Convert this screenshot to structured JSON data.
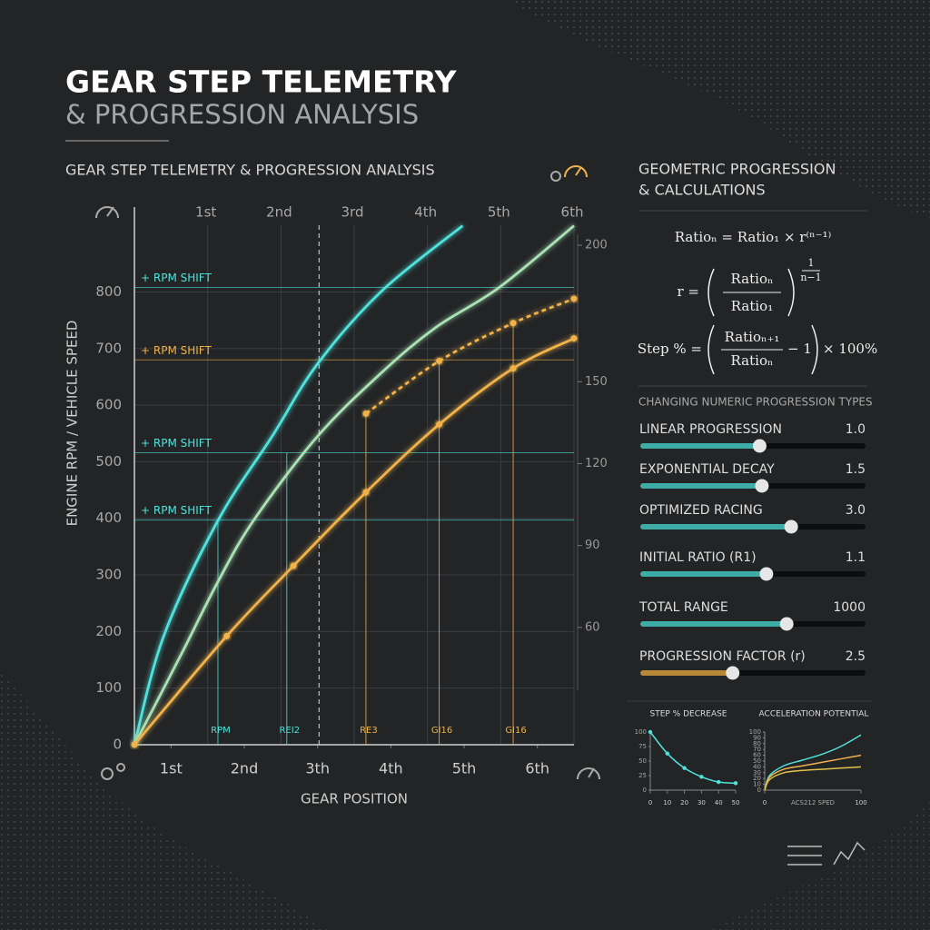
{
  "header": {
    "title": "GEAR STEP TELEMETRY",
    "subtitle": "& PROGRESSION ANALYSIS"
  },
  "chart_data": [
    {
      "type": "line",
      "title": "GEAR STEP TELEMETRY & PROGRESSION ANALYSIS",
      "xlabel": "GEAR POSITION",
      "ylabel": "ENGINE RPM / VEHICLE SPEED",
      "xlim": [
        0.5,
        6.5
      ],
      "xticks": [
        {
          "value": 1,
          "label": "1st"
        },
        {
          "value": 2,
          "label": "2nd"
        },
        {
          "value": 3,
          "label": "3th"
        },
        {
          "value": 4,
          "label": "4th"
        },
        {
          "value": 5,
          "label": "5th"
        },
        {
          "value": 6,
          "label": "6th"
        }
      ],
      "x2ticks": [
        {
          "value": 1.5,
          "label": "1st"
        },
        {
          "value": 2.5,
          "label": "2nd"
        },
        {
          "value": 3.5,
          "label": "3rd"
        },
        {
          "value": 4.5,
          "label": "4th"
        },
        {
          "value": 5.5,
          "label": "5th"
        },
        {
          "value": 6.5,
          "label": "6th"
        }
      ],
      "ylim": [
        0,
        950
      ],
      "yticks": [
        0,
        100,
        200,
        300,
        400,
        500,
        600,
        700,
        800
      ],
      "y2lim": [
        17,
        214
      ],
      "y2ticks": [
        60,
        90,
        120,
        150,
        200
      ],
      "grid": true,
      "series": [
        {
          "color": "#4fe3dc",
          "style": "solid",
          "x": [
            0.5,
            0.9,
            1.64,
            2.38,
            3.0,
            3.87,
            4.98
          ],
          "values": [
            0,
            192,
            396,
            545,
            673,
            801,
            917
          ]
        },
        {
          "color": "#a9e2b4",
          "style": "solid",
          "x": [
            0.5,
            1.14,
            1.64,
            2.13,
            3.0,
            3.87,
            4.61,
            5.48,
            6.5
          ],
          "values": [
            0,
            160,
            288,
            397,
            545,
            657,
            737,
            808,
            917
          ]
        },
        {
          "color": "#f0b24a",
          "style": "solid",
          "markers": true,
          "x": [
            0.5,
            1.76,
            2.67,
            3.66,
            4.66,
            5.67,
            6.5
          ],
          "values": [
            0,
            192,
            316,
            446,
            566,
            665,
            718
          ]
        },
        {
          "color": "#f0b24a",
          "style": "dashed",
          "markers": true,
          "x": [
            3.66,
            4.66,
            5.67,
            6.5
          ],
          "values": [
            585,
            678,
            745,
            788
          ]
        }
      ],
      "reference_lines": [
        {
          "label": "+ RPM SHIFT",
          "value": 808,
          "color": "#4fe3dc"
        },
        {
          "label": "+ RPM SHIFT",
          "value": 680,
          "color": "#f0b24a"
        },
        {
          "label": "+ RPM SHIFT",
          "value": 516,
          "color": "#4fe3dc"
        },
        {
          "label": "+ RPM SHIFT",
          "value": 397,
          "color": "#4fe3dc"
        }
      ],
      "drop_lines": [
        {
          "label": "RPM",
          "x": 1.64,
          "y": 396,
          "color": "#4fe3dc"
        },
        {
          "label": "REI2",
          "x": 2.58,
          "y": 516,
          "color": "#4fe3dc"
        },
        {
          "label": "RE3",
          "x": 3.66,
          "y": 585,
          "color": "#f0b24a"
        },
        {
          "label": "GI16",
          "x": 4.66,
          "y": 678,
          "color": "#f0b24a"
        },
        {
          "label": "GI16",
          "x": 5.67,
          "y": 745,
          "color": "#f0b24a"
        }
      ],
      "cursor_x": 3.02
    },
    {
      "type": "line",
      "title": "STEP % DECREASE",
      "xlim": [
        0,
        50
      ],
      "xticks": [
        0,
        10,
        20,
        30,
        40,
        50
      ],
      "ylim": [
        0,
        100
      ],
      "yticks": [
        0,
        25,
        50,
        75,
        100
      ],
      "series": [
        {
          "color": "#4fe3dc",
          "markers": true,
          "x": [
            0,
            10,
            20,
            30,
            40,
            50
          ],
          "values": [
            100,
            63,
            38,
            23,
            14,
            12
          ]
        }
      ]
    },
    {
      "type": "line",
      "title": "ACCELERATION POTENTIAL",
      "xlabel": "ACS212 SPED",
      "xlim": [
        0,
        100
      ],
      "xticks": [
        0,
        100
      ],
      "ylim": [
        0,
        100
      ],
      "yticks": [
        0,
        10,
        20,
        30,
        40,
        50,
        60,
        70,
        80,
        90,
        100
      ],
      "series": [
        {
          "color": "#4fe3dc",
          "x": [
            0,
            5,
            20,
            40,
            60,
            80,
            100
          ],
          "values": [
            0,
            25,
            42,
            52,
            62,
            76,
            95
          ]
        },
        {
          "color": "#f0b24a",
          "x": [
            0,
            5,
            20,
            40,
            60,
            80,
            100
          ],
          "values": [
            0,
            22,
            36,
            42,
            48,
            54,
            60
          ]
        },
        {
          "color": "#e2c24c",
          "x": [
            0,
            5,
            20,
            40,
            60,
            80,
            100
          ],
          "values": [
            0,
            18,
            30,
            34,
            36,
            38,
            40
          ]
        }
      ]
    }
  ],
  "panel": {
    "title_lines": [
      "GEOMETRIC PROGRESSION",
      "& CALCULATIONS"
    ],
    "formula_1": "Ratioₙ = Ratio₁ × r⁽ⁿ⁻¹⁾",
    "formula_2": {
      "lhs": "r =",
      "numerator": "Ratioₙ",
      "denominator": "Ratio₁",
      "exponent_numerator": "1",
      "exponent_denominator": "n−1"
    },
    "formula_3": {
      "lhs": "Step % =",
      "numerator": "Ratioₙ₊₁",
      "denominator": "Ratioₙ",
      "rest": "− 1",
      "tail": "× 100%"
    },
    "sliders_title": "CHANGING NUMERIC PROGRESSION TYPES",
    "sliders": [
      {
        "name": "LINEAR PROGRESSION",
        "value": 1.0,
        "value_label": "1.0",
        "fill": 53,
        "color": "#4fe3dc"
      },
      {
        "name": "EXPONENTIAL DECAY",
        "value": 1.5,
        "fill": 54,
        "color": "#4fe3dc"
      },
      {
        "name": "OPTIMIZED RACING",
        "value": 3.0,
        "value_label": "3.0",
        "fill": 67,
        "color": "#4fe3dc"
      },
      {
        "name": "INITIAL RATIO (R1)",
        "value": 1.1,
        "fill": 56,
        "color": "#4fe3dc"
      },
      {
        "name": "TOTAL RANGE",
        "value": 1000,
        "fill": 65,
        "color": "#4fe3dc"
      },
      {
        "name": "PROGRESSION FACTOR (r)",
        "value": 2.5,
        "fill": 41,
        "color": "#f0b24a"
      }
    ]
  }
}
